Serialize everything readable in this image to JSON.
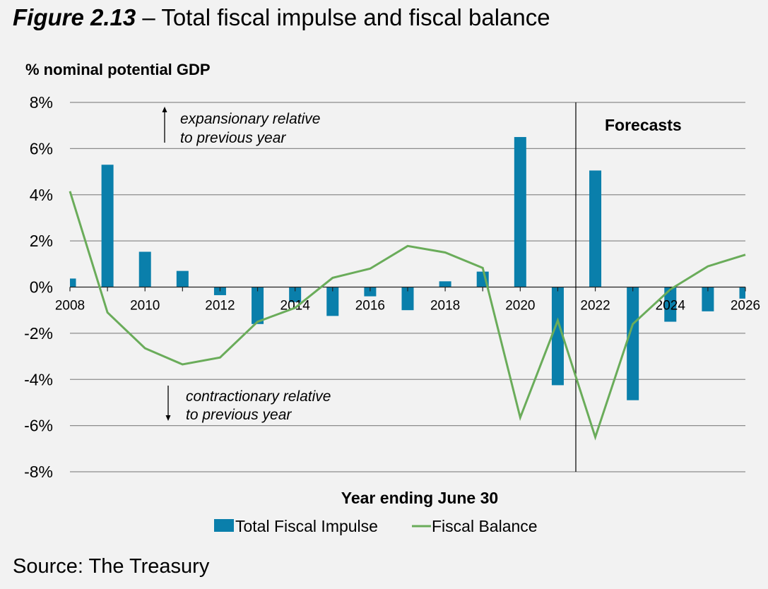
{
  "figure": {
    "number": "Figure 2.13",
    "dash": " – ",
    "title": "Total fiscal impulse and fiscal balance",
    "source": "Source: The Treasury"
  },
  "chart_data": {
    "type": "bar",
    "title": "Total fiscal impulse and fiscal balance",
    "ylabel": "% nominal potential GDP",
    "xlabel": "Year ending June 30",
    "ylim": [
      -8,
      8
    ],
    "yticks": [
      8,
      6,
      4,
      2,
      0,
      -2,
      -4,
      -6,
      -8
    ],
    "ytick_labels": [
      "8%",
      "6%",
      "4%",
      "2%",
      "0%",
      "-2%",
      "-4%",
      "-6%",
      "-8%"
    ],
    "grid": true,
    "x": [
      2008,
      2009,
      2010,
      2011,
      2012,
      2013,
      2014,
      2015,
      2016,
      2017,
      2018,
      2019,
      2020,
      2021,
      2022,
      2023,
      2024,
      2025,
      2026
    ],
    "xtick_labels": [
      "2008",
      "2010",
      "2012",
      "2014",
      "2016",
      "2018",
      "2020",
      "2022",
      "2024",
      "2026"
    ],
    "series": [
      {
        "name": "Total Fiscal Impulse",
        "type": "bar",
        "color": "#0a7fab",
        "values": [
          0.37,
          5.3,
          1.53,
          0.7,
          -0.35,
          -1.6,
          -0.65,
          -1.25,
          -0.4,
          -1.0,
          0.25,
          0.67,
          6.5,
          -4.25,
          5.05,
          -4.9,
          -1.5,
          -1.05,
          -0.5
        ]
      },
      {
        "name": "Fiscal Balance",
        "type": "line",
        "color": "#6aac5a",
        "values": [
          4.15,
          -1.1,
          -2.65,
          -3.35,
          -3.05,
          -1.5,
          -0.9,
          0.4,
          0.8,
          1.78,
          1.5,
          0.83,
          -5.65,
          -1.45,
          -6.5,
          -1.6,
          -0.1,
          0.9,
          1.4
        ]
      }
    ],
    "forecast_start_after": 2021,
    "annotations": {
      "forecasts": "Forecasts",
      "expansionary_line1": "expansionary relative",
      "expansionary_line2": "to previous year",
      "contractionary_line1": "contractionary relative",
      "contractionary_line2": "to previous year"
    },
    "legend": {
      "placement": "bottom",
      "items": [
        "Total Fiscal Impulse",
        "Fiscal Balance"
      ]
    }
  }
}
